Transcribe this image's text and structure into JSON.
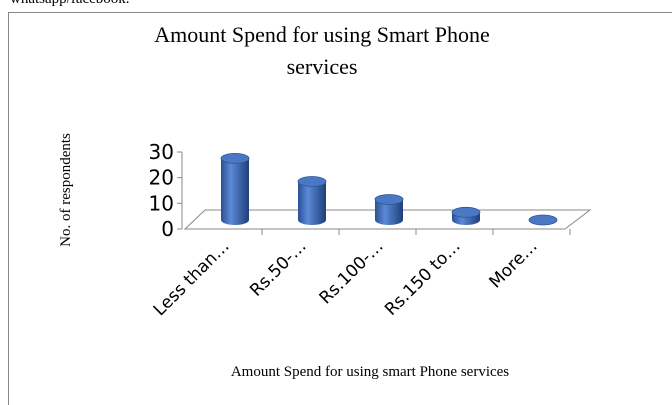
{
  "caption_fragment": "whatsapp/facebook.",
  "chart_data": {
    "type": "bar3d",
    "title": "Amount Spend for using Smart Phone services",
    "title_lines": [
      "Amount Spend for using Smart Phone",
      "services"
    ],
    "y_label": "No. of respondents",
    "x_label": "Amount Spend for using smart Phone services",
    "categories": [
      "Less than…",
      "Rs.50-…",
      "Rs.100-…",
      "Rs.150 to…",
      "More…"
    ],
    "values": [
      24,
      15,
      8,
      3,
      0
    ],
    "color": "#4472c4",
    "ylim": [
      0,
      30
    ],
    "yticks": [
      0,
      10,
      20,
      30
    ]
  }
}
